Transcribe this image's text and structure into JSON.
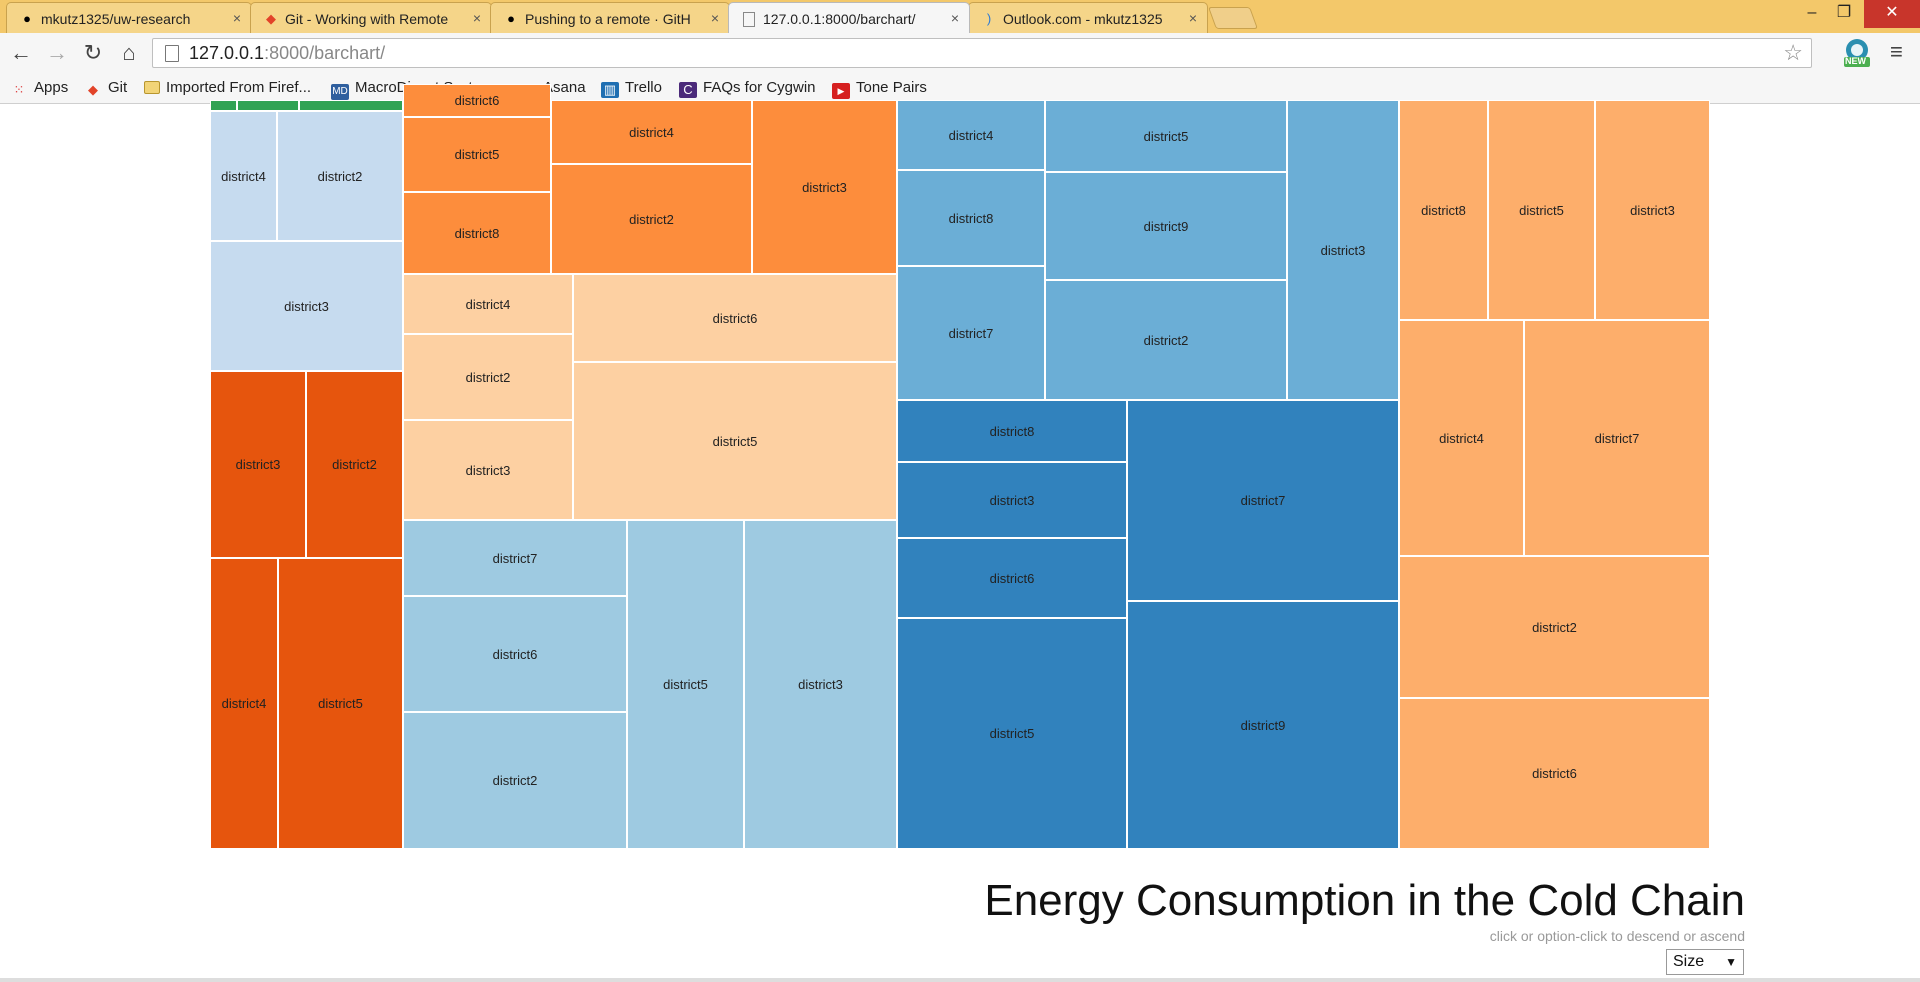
{
  "browser": {
    "tabs": [
      {
        "title": "mkutz1325/uw-research",
        "icon": "github-icon",
        "close": "×"
      },
      {
        "title": "Git - Working with Remote",
        "icon": "git-icon",
        "close": "×"
      },
      {
        "title": "Pushing to a remote · GitH",
        "icon": "github-icon",
        "close": "×"
      },
      {
        "title": "127.0.0.1:8000/barchart/",
        "icon": "page-icon",
        "close": "×"
      },
      {
        "title": "Outlook.com - mkutz1325",
        "icon": "outlook-icon",
        "close": "×"
      }
    ],
    "window_controls": {
      "minimize": "–",
      "maximize": "❐",
      "close": "✕"
    },
    "nav": {
      "back": "←",
      "forward": "→",
      "reload": "↻",
      "home": "⌂",
      "star": "☆",
      "menu": "≡"
    },
    "url_host": "127.0.0.1",
    "url_rest": ":8000/barchart/",
    "extension_badge": "NEW",
    "bookmarks": [
      {
        "label": "Apps",
        "icon": "apps-grid-icon",
        "color": "#d44"
      },
      {
        "label": "Git",
        "icon": "git-icon",
        "color": "#e24329"
      },
      {
        "label": "Imported From Firef...",
        "icon": "folder-icon",
        "color": "#e8c15a"
      },
      {
        "label": "MacroDigest System...",
        "icon": "md-icon",
        "color": "#2f5f9e"
      },
      {
        "label": "Asana",
        "icon": "asana-icon",
        "color": "#4a90c9"
      },
      {
        "label": "Trello",
        "icon": "trello-icon",
        "color": "#1f6fb2"
      },
      {
        "label": "FAQs for Cygwin",
        "icon": "cygwin-icon",
        "color": "#4b2a7a"
      },
      {
        "label": "Tone Pairs",
        "icon": "youtube-icon",
        "color": "#d62020"
      }
    ]
  },
  "page": {
    "title": "Energy Consumption in the Cold Chain",
    "hint": "click or option-click to descend or ascend",
    "select_value": "Size"
  },
  "colors": {
    "green": "#31a354",
    "light_blue_gray": "#c6dbef",
    "dark_orange": "#e6550d",
    "orange": "#fd8d3c",
    "peach": "#fdd0a2",
    "sky": "#9ecae1",
    "mid_blue": "#6baed6",
    "blue": "#3182bd",
    "light_orange": "#fdae6b"
  },
  "treemap": {
    "cells": [
      {
        "label": "",
        "color": "green"
      },
      {
        "label": "",
        "color": "green"
      },
      {
        "label": "",
        "color": "green"
      },
      {
        "label": "district4",
        "color": "light_blue_gray"
      },
      {
        "label": "district2",
        "color": "light_blue_gray"
      },
      {
        "label": "district3",
        "color": "light_blue_gray"
      },
      {
        "label": "district3",
        "color": "dark_orange"
      },
      {
        "label": "district2",
        "color": "dark_orange"
      },
      {
        "label": "district4",
        "color": "dark_orange"
      },
      {
        "label": "district5",
        "color": "dark_orange"
      },
      {
        "label": "district6",
        "color": "orange"
      },
      {
        "label": "district5",
        "color": "orange"
      },
      {
        "label": "district8",
        "color": "orange"
      },
      {
        "label": "district4",
        "color": "orange"
      },
      {
        "label": "district2",
        "color": "orange"
      },
      {
        "label": "district3",
        "color": "orange"
      },
      {
        "label": "district4",
        "color": "peach"
      },
      {
        "label": "district2",
        "color": "peach"
      },
      {
        "label": "district3",
        "color": "peach"
      },
      {
        "label": "district6",
        "color": "peach"
      },
      {
        "label": "district5",
        "color": "peach"
      },
      {
        "label": "district7",
        "color": "sky"
      },
      {
        "label": "district6",
        "color": "sky"
      },
      {
        "label": "district2",
        "color": "sky"
      },
      {
        "label": "district5",
        "color": "sky"
      },
      {
        "label": "district3",
        "color": "sky"
      },
      {
        "label": "district4",
        "color": "mid_blue"
      },
      {
        "label": "district8",
        "color": "mid_blue"
      },
      {
        "label": "district7",
        "color": "mid_blue"
      },
      {
        "label": "district5",
        "color": "mid_blue"
      },
      {
        "label": "district9",
        "color": "mid_blue"
      },
      {
        "label": "district2",
        "color": "mid_blue"
      },
      {
        "label": "district3",
        "color": "mid_blue"
      },
      {
        "label": "district8",
        "color": "blue"
      },
      {
        "label": "district3",
        "color": "blue"
      },
      {
        "label": "district6",
        "color": "blue"
      },
      {
        "label": "district5",
        "color": "blue"
      },
      {
        "label": "district7",
        "color": "blue"
      },
      {
        "label": "district9",
        "color": "blue"
      },
      {
        "label": "district8",
        "color": "light_orange"
      },
      {
        "label": "district5",
        "color": "light_orange"
      },
      {
        "label": "district3",
        "color": "light_orange"
      },
      {
        "label": "district4",
        "color": "light_orange"
      },
      {
        "label": "district7",
        "color": "light_orange"
      },
      {
        "label": "district2",
        "color": "light_orange"
      },
      {
        "label": "district6",
        "color": "light_orange"
      }
    ]
  }
}
